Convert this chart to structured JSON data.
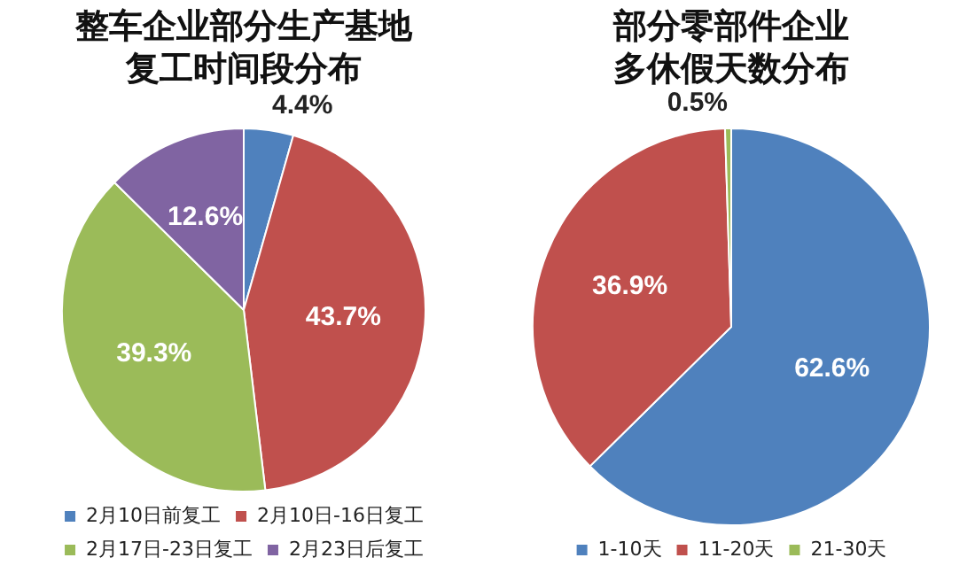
{
  "chart_data": [
    {
      "type": "pie",
      "title": "整车企业部分生产基地复工时间段分布",
      "categories": [
        "2月10日前复工",
        "2月10日-16日复工",
        "2月17日-23日复工",
        "2月23日后复工"
      ],
      "values": [
        4.4,
        43.7,
        39.3,
        12.6
      ],
      "colors": [
        "#4f81bd",
        "#c0504d",
        "#9bbb59",
        "#8064a2"
      ],
      "value_labels": [
        "4.4%",
        "43.7%",
        "39.3%",
        "12.6%"
      ],
      "legend": "bottom"
    },
    {
      "type": "pie",
      "title": "部分零部件企业多休假天数分布",
      "categories": [
        "1-10天",
        "11-20天",
        "21-30天"
      ],
      "values": [
        62.6,
        36.9,
        0.5
      ],
      "colors": [
        "#4f81bd",
        "#c0504d",
        "#9bbb59"
      ],
      "value_labels": [
        "62.6%",
        "36.9%",
        "0.5%"
      ],
      "legend": "bottom"
    }
  ]
}
